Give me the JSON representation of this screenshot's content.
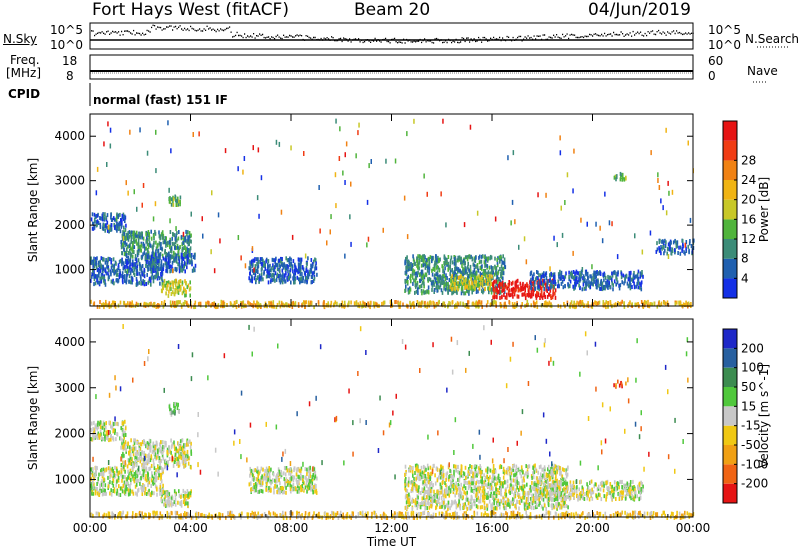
{
  "header": {
    "radar": "Fort Hays West (fitACF)",
    "beam": "Beam 20",
    "date": "04/Jun/2019"
  },
  "noise_panel": {
    "left_label": "N.Sky",
    "right_label": "N.Search",
    "left_ticks": [
      "10^5",
      "10^0"
    ],
    "right_ticks": [
      "10^5",
      "10^0"
    ]
  },
  "freq_panel": {
    "left_label_top": "Freq.",
    "left_label_bottom": "[MHz]",
    "right_label": "Nave",
    "left_ticks": [
      "18",
      "8"
    ],
    "right_ticks": [
      "60",
      "0"
    ],
    "cpid_label": "CPID",
    "cpid_text": "normal (fast) 151 IF"
  },
  "chart_data": [
    {
      "type": "heatmap",
      "title": "",
      "xlabel": "",
      "ylabel": "Slant Range [km]",
      "x_ticks": [
        "00:00",
        "04:00",
        "08:00",
        "12:00",
        "16:00",
        "20:00",
        "00:00"
      ],
      "y_ticks": [
        1000,
        2000,
        3000,
        4000
      ],
      "xlim_hours": [
        0,
        24
      ],
      "ylim_km": [
        180,
        4500
      ],
      "colorbar": {
        "label": "Power [dB]",
        "ticks": [
          4,
          8,
          12,
          16,
          20,
          24,
          28
        ],
        "colors": [
          "#1430e6",
          "#2060b0",
          "#3c8c78",
          "#50b43c",
          "#c8c828",
          "#f0b414",
          "#f08214",
          "#f03c14",
          "#e61414"
        ]
      },
      "echo_regions": [
        {
          "t0": 0.0,
          "t1": 2.9,
          "r0": 700,
          "r1": 1300,
          "level": 1
        },
        {
          "t0": 0.0,
          "t1": 1.4,
          "r0": 1900,
          "r1": 2300,
          "level": 1
        },
        {
          "t0": 1.2,
          "t1": 4.0,
          "r0": 1300,
          "r1": 1900,
          "level": 2
        },
        {
          "t0": 2.2,
          "t1": 4.2,
          "r0": 1000,
          "r1": 1400,
          "level": 1
        },
        {
          "t0": 2.8,
          "t1": 4.0,
          "r0": 450,
          "r1": 800,
          "level": 4
        },
        {
          "t0": 3.1,
          "t1": 3.6,
          "r0": 2450,
          "r1": 2700,
          "level": 3
        },
        {
          "t0": 6.3,
          "t1": 9.0,
          "r0": 750,
          "r1": 1300,
          "level": 1
        },
        {
          "t0": 12.5,
          "t1": 16.5,
          "r0": 500,
          "r1": 1350,
          "level": 2
        },
        {
          "t0": 14.3,
          "t1": 16.0,
          "r0": 600,
          "r1": 900,
          "level": 4
        },
        {
          "t0": 16.0,
          "t1": 18.5,
          "r0": 400,
          "r1": 800,
          "level": 8
        },
        {
          "t0": 17.5,
          "t1": 22.0,
          "r0": 600,
          "r1": 1000,
          "level": 1
        },
        {
          "t0": 22.5,
          "t1": 24.0,
          "r0": 1400,
          "r1": 1700,
          "level": 1
        },
        {
          "t0": 20.8,
          "t1": 21.3,
          "r0": 3050,
          "r1": 3200,
          "level": 3
        },
        {
          "t0": 0.0,
          "t1": 24.0,
          "r0": 200,
          "r1": 320,
          "level": 5
        }
      ]
    },
    {
      "type": "heatmap",
      "title": "",
      "xlabel": "Time UT",
      "ylabel": "Slant Range [km]",
      "x_ticks": [
        "00:00",
        "04:00",
        "08:00",
        "12:00",
        "16:00",
        "20:00",
        "00:00"
      ],
      "y_ticks": [
        1000,
        2000,
        3000,
        4000
      ],
      "xlim_hours": [
        0,
        24
      ],
      "ylim_km": [
        180,
        4500
      ],
      "colorbar": {
        "label": "Velocity [m s^-1]",
        "ticks": [
          200,
          100,
          50,
          15,
          -15,
          -50,
          -100,
          -200
        ],
        "colors": [
          "#1e28c8",
          "#2860a0",
          "#3c8c50",
          "#50c83c",
          "#c8c8c8",
          "#f0c814",
          "#f0a014",
          "#f06414",
          "#e61414"
        ]
      },
      "echo_regions": [
        {
          "t0": 0.0,
          "t1": 2.9,
          "r0": 700,
          "r1": 1300,
          "level": 4
        },
        {
          "t0": 0.0,
          "t1": 1.4,
          "r0": 1900,
          "r1": 2300,
          "level": 4
        },
        {
          "t0": 1.2,
          "t1": 4.0,
          "r0": 1300,
          "r1": 1900,
          "level": 4
        },
        {
          "t0": 2.8,
          "t1": 4.0,
          "r0": 450,
          "r1": 800,
          "level": 4
        },
        {
          "t0": 3.1,
          "t1": 3.6,
          "r0": 2450,
          "r1": 2700,
          "level": 3
        },
        {
          "t0": 6.3,
          "t1": 9.0,
          "r0": 750,
          "r1": 1300,
          "level": 4
        },
        {
          "t0": 12.5,
          "t1": 19.0,
          "r0": 400,
          "r1": 1350,
          "level": 4
        },
        {
          "t0": 17.5,
          "t1": 22.0,
          "r0": 600,
          "r1": 1000,
          "level": 4
        },
        {
          "t0": 20.8,
          "t1": 21.3,
          "r0": 3050,
          "r1": 3200,
          "level": 7
        },
        {
          "t0": 0.0,
          "t1": 24.0,
          "r0": 200,
          "r1": 320,
          "level": 5
        }
      ]
    }
  ]
}
